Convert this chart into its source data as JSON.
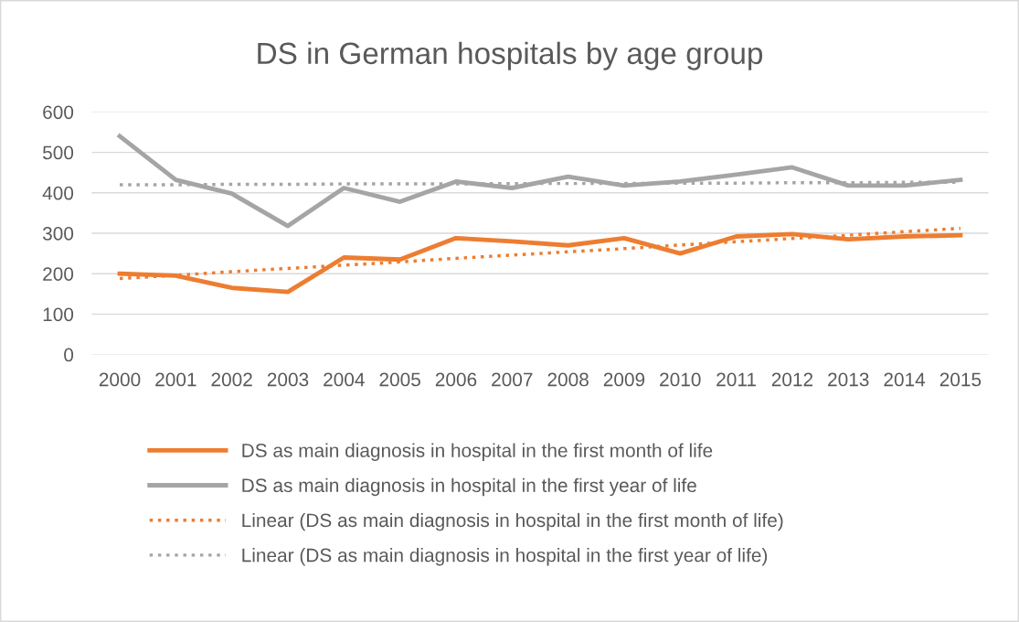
{
  "chart_data": {
    "type": "line",
    "title": "DS in German hospitals by age group",
    "categories": [
      "2000",
      "2001",
      "2002",
      "2003",
      "2004",
      "2005",
      "2006",
      "2007",
      "2008",
      "2009",
      "2010",
      "2011",
      "2012",
      "2013",
      "2014",
      "2015"
    ],
    "series": [
      {
        "name": "DS as main diagnosis in hospital in the first month of life",
        "color": "#ed7d31",
        "values": [
          200,
          195,
          165,
          155,
          240,
          235,
          288,
          280,
          270,
          288,
          250,
          292,
          298,
          285,
          292,
          295
        ]
      },
      {
        "name": "DS as main diagnosis in hospital in the first year of life",
        "color": "#a5a5a5",
        "values": [
          540,
          432,
          398,
          318,
          412,
          378,
          428,
          412,
          440,
          418,
          428,
          445,
          463,
          418,
          418,
          432
        ]
      },
      {
        "name": "Linear (DS as main diagnosis in hospital in the first month of life)",
        "color": "#ed7d31",
        "values": [
          188,
          196,
          205,
          213,
          221,
          229,
          238,
          246,
          254,
          262,
          271,
          279,
          287,
          295,
          304,
          312
        ],
        "line_style": "dotted"
      },
      {
        "name": "Linear (DS as main diagnosis in hospital in the first year of life)",
        "color": "#a5a5a5",
        "values": [
          420,
          420,
          421,
          421,
          422,
          422,
          422,
          423,
          423,
          423,
          424,
          424,
          425,
          425,
          426,
          426
        ],
        "line_style": "dotted"
      }
    ],
    "ylim": [
      0,
      600
    ],
    "yticks": [
      0,
      100,
      200,
      300,
      400,
      500,
      600
    ],
    "grid": "y",
    "legend": "bottom",
    "line_style": "solid",
    "marker": "none"
  }
}
